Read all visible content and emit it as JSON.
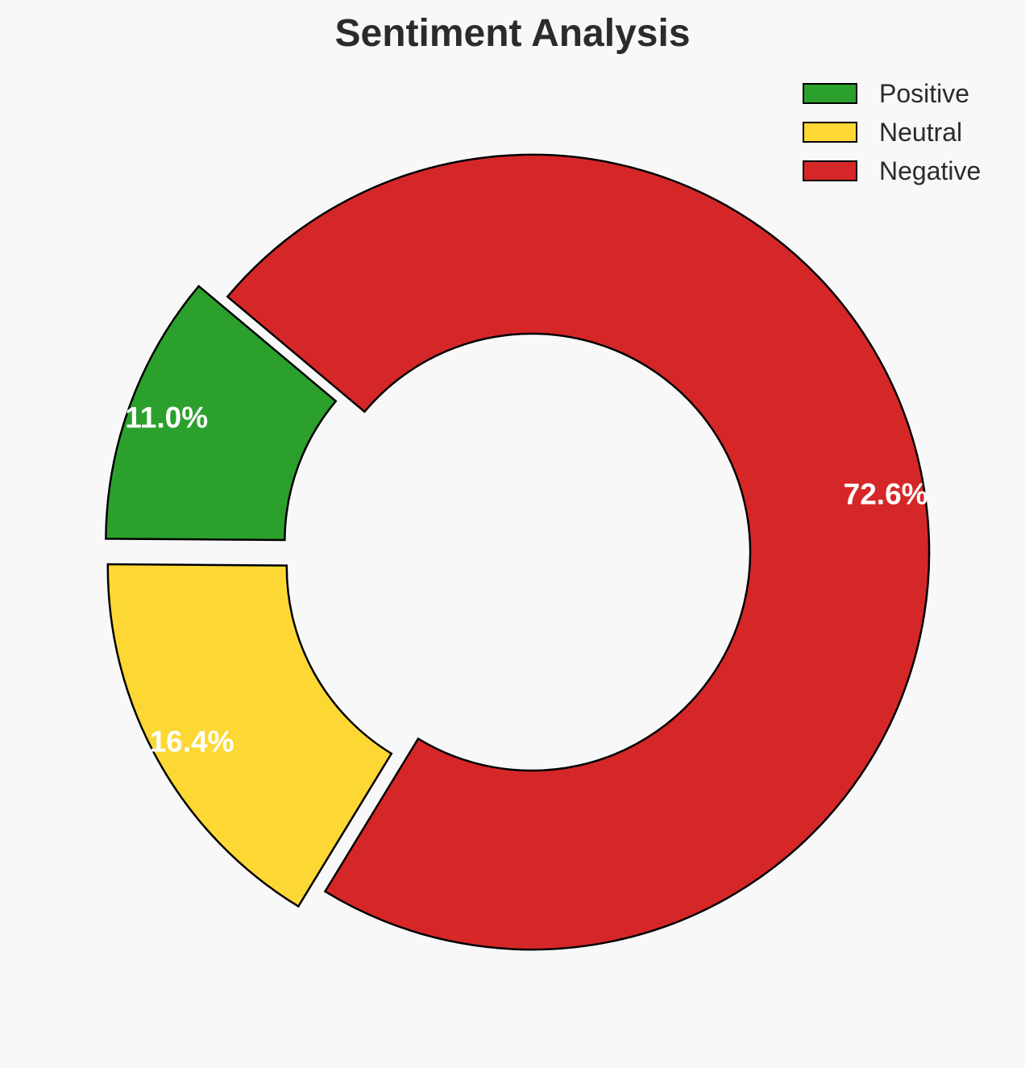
{
  "chart_data": {
    "type": "pie",
    "variant": "donut",
    "title": "Sentiment Analysis",
    "categories": [
      "Positive",
      "Neutral",
      "Negative"
    ],
    "values": [
      11.0,
      16.4,
      72.6
    ],
    "labels": [
      "11.0%",
      "16.4%",
      "72.6%"
    ],
    "colors": [
      "#2ca02c",
      "#fdd835",
      "#d62728"
    ],
    "exploded": [
      true,
      true,
      false
    ],
    "legend_position": "top-right"
  }
}
